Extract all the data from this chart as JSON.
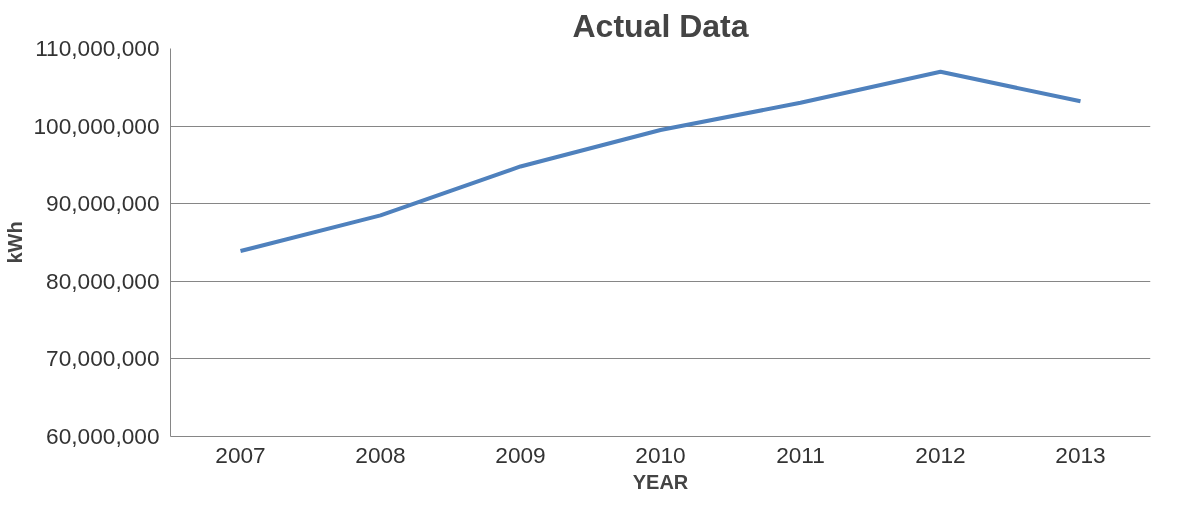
{
  "chart_data": {
    "type": "line",
    "title": "Actual Data",
    "xlabel": "YEAR",
    "ylabel": "kWh",
    "categories": [
      "2007",
      "2008",
      "2009",
      "2010",
      "2011",
      "2012",
      "2013"
    ],
    "series": [
      {
        "color": "#4f81bd",
        "values": [
          83900000,
          88500000,
          94800000,
          99500000,
          103000000,
          107000000,
          103200000
        ]
      }
    ],
    "ylim": [
      60000000,
      110000000
    ],
    "yticks": [
      {
        "value": 60000000,
        "label": "60,000,000"
      },
      {
        "value": 70000000,
        "label": "70,000,000"
      },
      {
        "value": 80000000,
        "label": "80,000,000"
      },
      {
        "value": 90000000,
        "label": "90,000,000"
      },
      {
        "value": 100000000,
        "label": "100,000,000"
      },
      {
        "value": 110000000,
        "label": "110,000,000"
      }
    ],
    "grid": "y",
    "marker": "none",
    "line_style": "solid"
  }
}
